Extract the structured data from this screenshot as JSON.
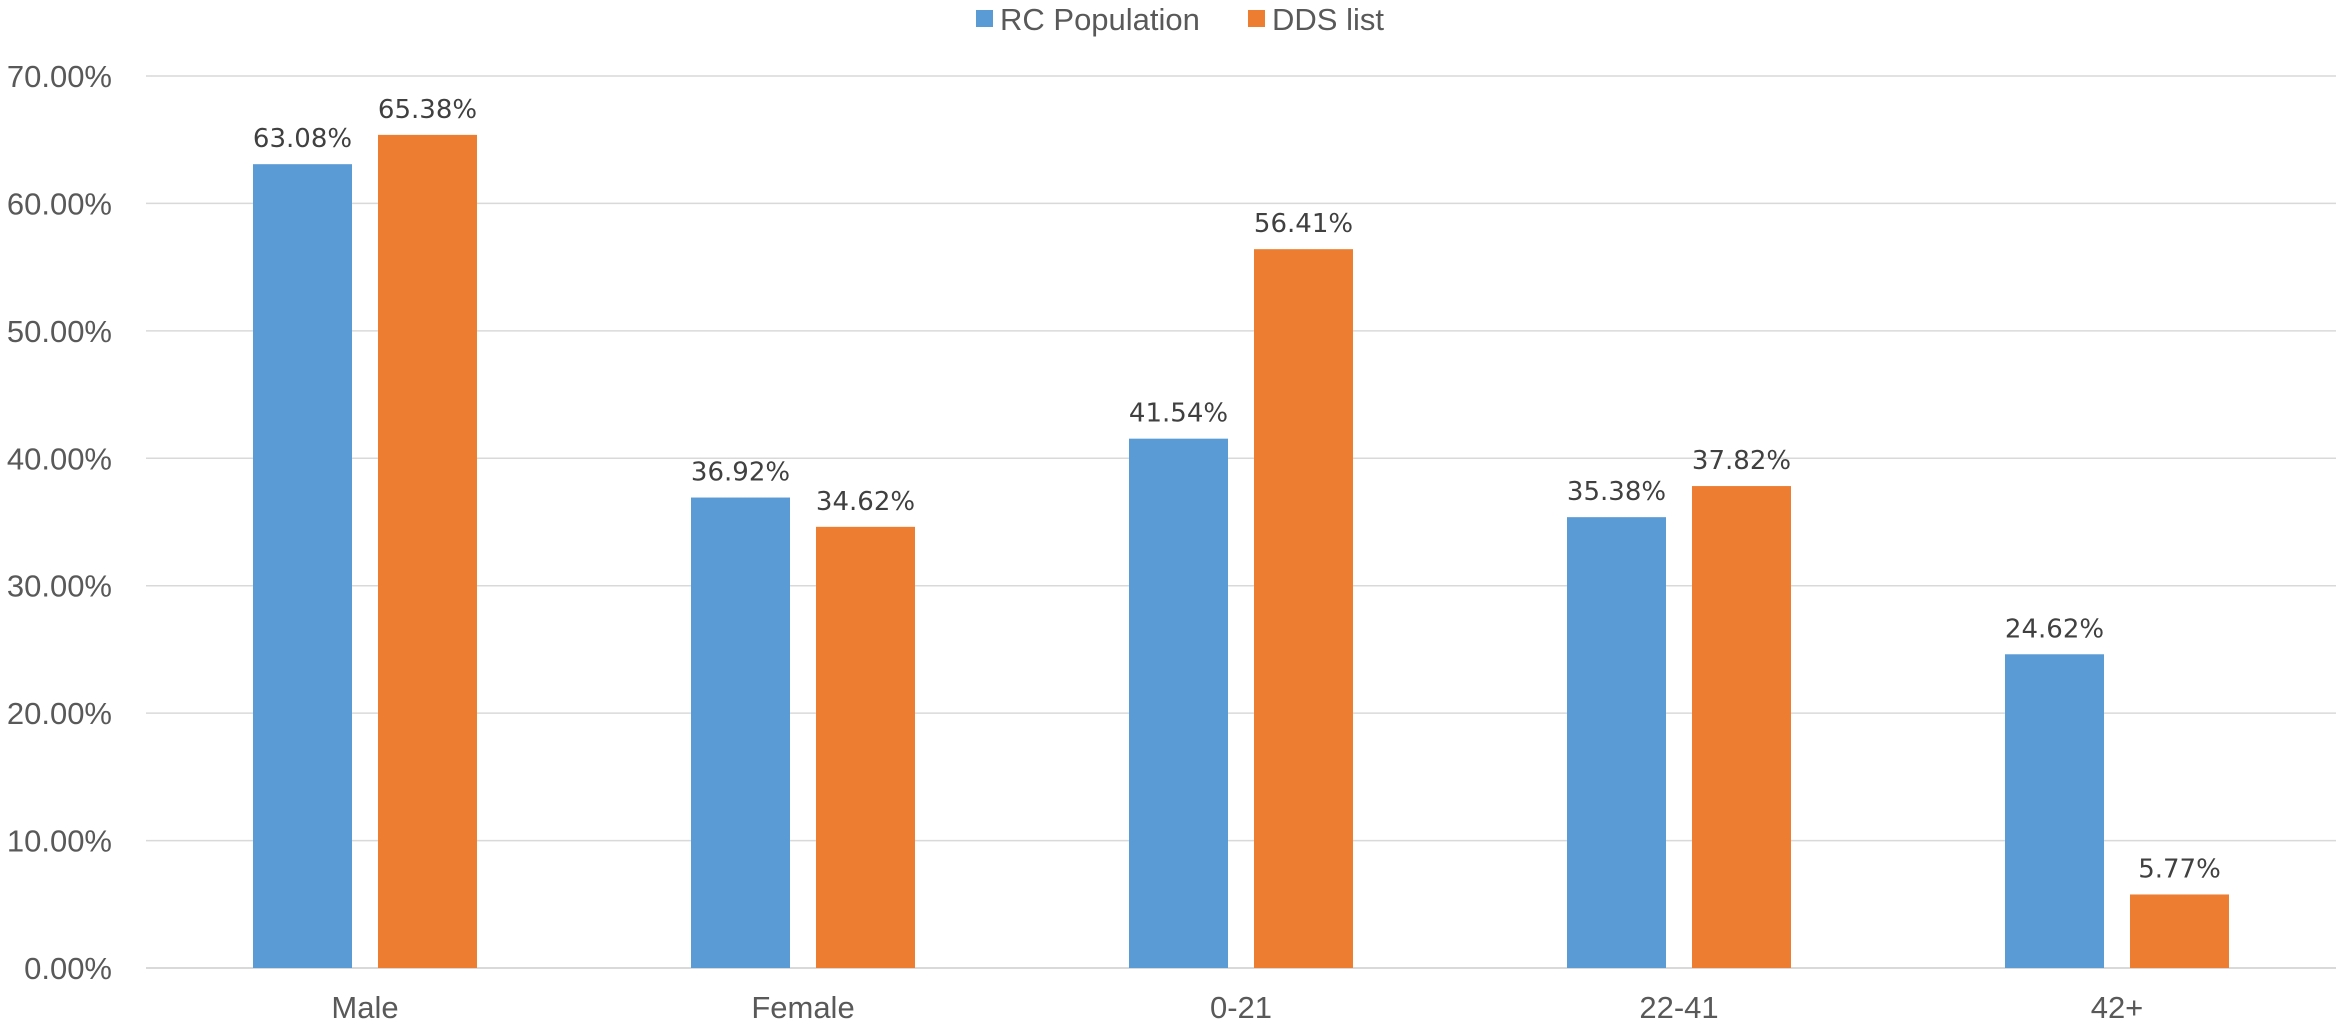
{
  "chart_data": {
    "type": "bar",
    "categories": [
      "Male",
      "Female",
      "0-21",
      "22-41",
      "42+"
    ],
    "series": [
      {
        "name": "RC Population",
        "color": "#5b9bd5",
        "values": [
          63.08,
          36.92,
          41.54,
          35.38,
          24.62
        ],
        "labels": [
          "63.08%",
          "36.92%",
          "41.54%",
          "35.38%",
          "24.62%"
        ]
      },
      {
        "name": "DDS list",
        "color": "#ed7d31",
        "values": [
          65.38,
          34.62,
          56.41,
          37.82,
          5.77
        ],
        "labels": [
          "65.38%",
          "34.62%",
          "56.41%",
          "37.82%",
          "5.77%"
        ]
      }
    ],
    "ylim": [
      0,
      70
    ],
    "yticks": [
      0,
      10,
      20,
      30,
      40,
      50,
      60,
      70
    ],
    "ytick_labels": [
      "0.00%",
      "10.00%",
      "20.00%",
      "30.00%",
      "40.00%",
      "50.00%",
      "60.00%",
      "70.00%"
    ],
    "title": "",
    "xlabel": "",
    "ylabel": "",
    "grid": true,
    "legend_position": "top-center"
  }
}
